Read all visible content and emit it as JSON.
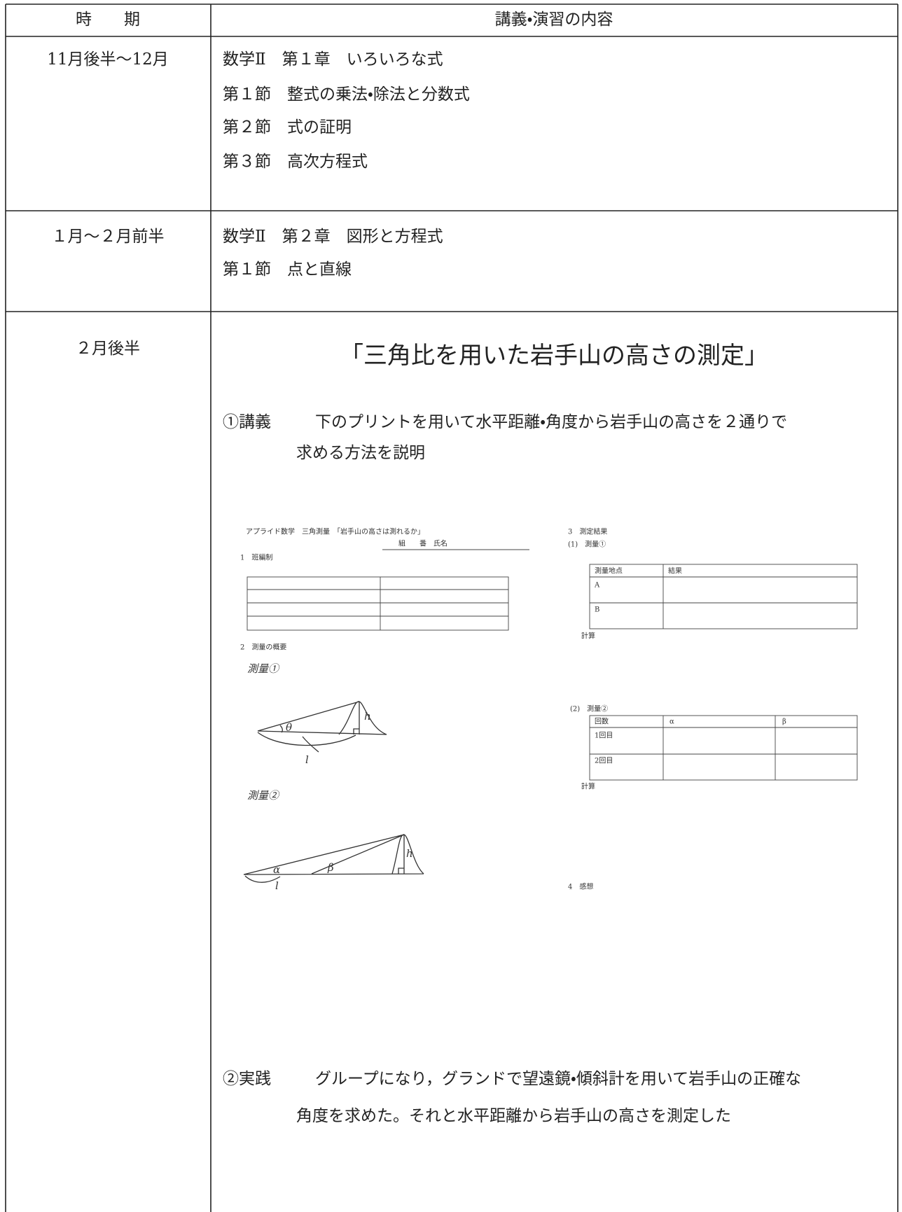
{
  "table": {
    "header": [
      "時　　期",
      "講義・演習の内容"
    ],
    "rows": [
      {
        "period": "11月後半〜12月",
        "lines": [
          "数学Ⅱ　第１章　いろいろな式",
          "第１節　整式の乗法・除法と分数式",
          "第２節　式の証明",
          "第３節　高次方程式"
        ]
      },
      {
        "period": "１月〜２月前半",
        "lines": [
          "数学Ⅱ　第２章　図形と方程式",
          "第１節　点と直線"
        ]
      },
      {
        "period": "２月後半",
        "title": "「三角比を用いた岩手山の高さの測定」",
        "lecture": {
          "label": "①講義",
          "lines": [
            "下のプリントを用いて水平距離・角度から岩手山の高さを２通りで",
            "求める方法を説明"
          ]
        },
        "handout": {
          "title": "アプライド数学　三角測量　「岩手山の高さは測れるか」",
          "name_line": "組　　番　氏名",
          "section1": "1　班編制",
          "section2": "2　測量の概要",
          "survey1": "測量①",
          "survey2": "測量②",
          "diagram1_labels": [
            "θ",
            "l",
            "h"
          ],
          "diagram2_labels": [
            "α",
            "β",
            "l",
            "h"
          ],
          "section3": "3　測定結果",
          "result1": {
            "caption": "(1)　測量①",
            "header": [
              "測量地点",
              "結果"
            ],
            "rows": [
              "A",
              "B"
            ],
            "note": "計算"
          },
          "result2": {
            "caption": "(2)　測量②",
            "header": [
              "回数",
              "α",
              "β"
            ],
            "rows": [
              "1回目",
              "2回目"
            ],
            "note": "計算"
          },
          "section4": "4　感想"
        },
        "practice": {
          "label": "②実践",
          "lines": [
            "グループになり，グランドで望遠鏡・傾斜計を用いて岩手山の正確な",
            "角度を求めた。それと水平距離から岩手山の高さを測定した"
          ]
        }
      }
    ]
  }
}
